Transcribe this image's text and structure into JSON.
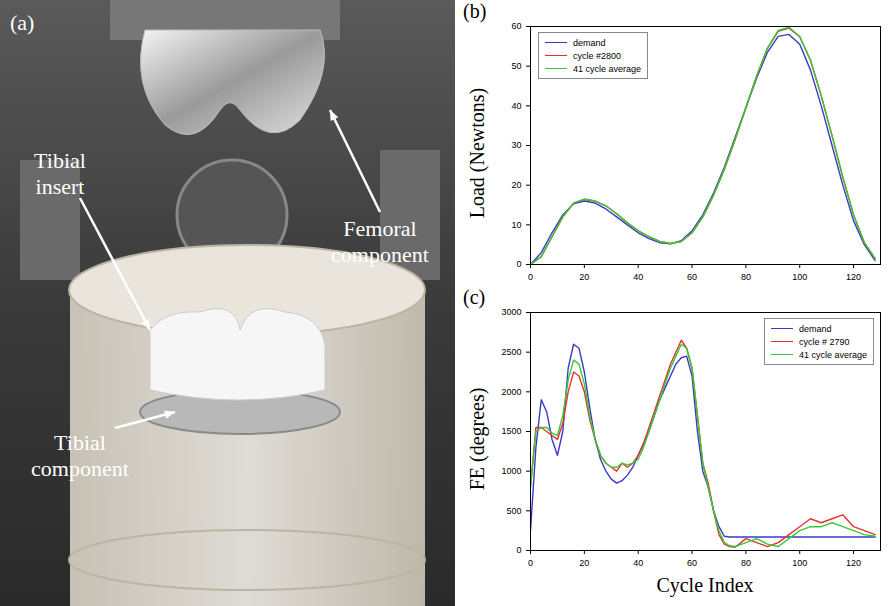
{
  "figure": {
    "photo": {
      "panel": "(a)",
      "annotations": [
        "Tibial insert",
        "Femoral component",
        "Tibial component"
      ]
    }
  },
  "chart_data": [
    {
      "type": "line",
      "panel": "(b)",
      "y_label": "Load (Newtons)",
      "x": [
        0,
        4,
        8,
        12,
        16,
        20,
        24,
        28,
        32,
        36,
        40,
        44,
        48,
        52,
        56,
        60,
        64,
        68,
        72,
        76,
        80,
        84,
        88,
        92,
        96,
        100,
        104,
        108,
        112,
        116,
        120,
        124,
        128
      ],
      "series": [
        {
          "name": "demand",
          "color": "#3a3ac8",
          "values": [
            0,
            3,
            8,
            12.5,
            15.3,
            16,
            15.5,
            14,
            12,
            10,
            8,
            6.5,
            5.5,
            5.2,
            6,
            8.5,
            12.5,
            18,
            24.5,
            32,
            39.5,
            47,
            53.5,
            57.5,
            58,
            55.5,
            49,
            40,
            30,
            20,
            11,
            5,
            1
          ]
        },
        {
          "name": "cycle #2800",
          "color": "#e8312f",
          "values": [
            0,
            2,
            7,
            12,
            15.4,
            16.4,
            16,
            14.8,
            12.8,
            10.5,
            8.5,
            7,
            5.8,
            5.3,
            5.8,
            8,
            12,
            17.5,
            24,
            31.5,
            39.5,
            47.5,
            54.5,
            58.8,
            59.6,
            57.4,
            51.5,
            42.5,
            32.5,
            22,
            12.5,
            5.5,
            1.5
          ]
        },
        {
          "name": "41 cycle average",
          "color": "#33cc33",
          "values": [
            0,
            2,
            7,
            12,
            15.5,
            16.5,
            16,
            14.8,
            12.8,
            10.5,
            8.5,
            7,
            5.8,
            5.3,
            5.8,
            8,
            12,
            17.5,
            24,
            31.5,
            39.5,
            47.5,
            54.5,
            59,
            59.8,
            57.5,
            51.5,
            42.5,
            32.5,
            22,
            12.5,
            5.5,
            1.5
          ]
        }
      ],
      "xlim": [
        0,
        130
      ],
      "xticks": [
        0,
        20,
        40,
        60,
        80,
        100,
        120
      ],
      "ylim": [
        0,
        60
      ],
      "yticks": [
        0,
        10,
        20,
        30,
        40,
        50,
        60
      ],
      "grid": false,
      "legend": "upper left"
    },
    {
      "type": "line",
      "panel": "(c)",
      "y_label": "FE (degrees)",
      "x_label": "Cycle Index",
      "x": [
        0,
        2,
        4,
        6,
        8,
        10,
        12,
        14,
        16,
        18,
        20,
        22,
        24,
        26,
        28,
        30,
        32,
        34,
        36,
        38,
        40,
        42,
        44,
        46,
        48,
        50,
        52,
        54,
        56,
        58,
        60,
        62,
        64,
        66,
        68,
        70,
        72,
        74,
        76,
        80,
        84,
        88,
        92,
        96,
        100,
        104,
        108,
        112,
        116,
        120,
        124,
        128
      ],
      "series": [
        {
          "name": "demand",
          "color": "#3a3ac8",
          "values": [
            250,
            1300,
            1900,
            1750,
            1400,
            1200,
            1500,
            2300,
            2600,
            2550,
            2250,
            1800,
            1400,
            1150,
            1000,
            900,
            850,
            880,
            950,
            1050,
            1200,
            1350,
            1500,
            1700,
            1900,
            2050,
            2200,
            2350,
            2430,
            2450,
            2200,
            1500,
            1000,
            800,
            500,
            300,
            180,
            170,
            170,
            170,
            170,
            170,
            170,
            170,
            170,
            170,
            170,
            170,
            170,
            170,
            170,
            170
          ]
        },
        {
          "name": "cycle # 2790",
          "color": "#e8312f",
          "values": [
            800,
            1550,
            1550,
            1500,
            1450,
            1400,
            1600,
            2000,
            2250,
            2200,
            2000,
            1650,
            1400,
            1200,
            1100,
            1050,
            1000,
            1100,
            1050,
            1100,
            1200,
            1350,
            1550,
            1750,
            1950,
            2150,
            2350,
            2500,
            2650,
            2550,
            2300,
            1700,
            1100,
            850,
            500,
            200,
            80,
            50,
            40,
            150,
            100,
            50,
            100,
            200,
            300,
            400,
            350,
            400,
            450,
            300,
            250,
            200
          ]
        },
        {
          "name": "41 cycle average",
          "color": "#33cc33",
          "values": [
            800,
            1500,
            1550,
            1550,
            1480,
            1450,
            1700,
            2150,
            2400,
            2350,
            2100,
            1700,
            1400,
            1200,
            1100,
            1050,
            1050,
            1100,
            1080,
            1100,
            1150,
            1300,
            1500,
            1700,
            1900,
            2100,
            2300,
            2450,
            2600,
            2550,
            2300,
            1700,
            1100,
            800,
            500,
            250,
            100,
            60,
            50,
            100,
            150,
            80,
            50,
            150,
            250,
            300,
            300,
            350,
            300,
            250,
            200,
            180
          ]
        }
      ],
      "xlim": [
        0,
        130
      ],
      "xticks": [
        0,
        20,
        40,
        60,
        80,
        100,
        120
      ],
      "ylim": [
        0,
        3000
      ],
      "yticks": [
        0,
        500,
        1000,
        1500,
        2000,
        2500,
        3000
      ],
      "grid": false,
      "legend": "upper right"
    }
  ]
}
